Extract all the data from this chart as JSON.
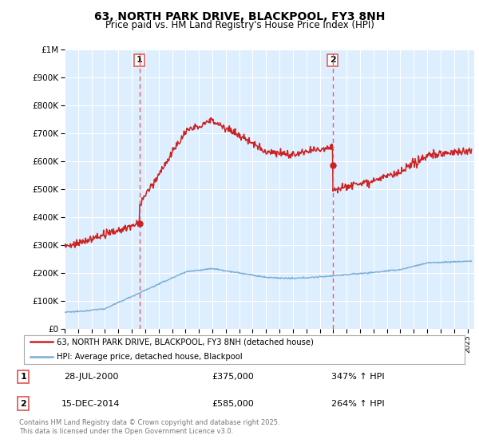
{
  "title": "63, NORTH PARK DRIVE, BLACKPOOL, FY3 8NH",
  "subtitle": "Price paid vs. HM Land Registry's House Price Index (HPI)",
  "legend_line1": "63, NORTH PARK DRIVE, BLACKPOOL, FY3 8NH (detached house)",
  "legend_line2": "HPI: Average price, detached house, Blackpool",
  "sale1_date": "28-JUL-2000",
  "sale1_price": "£375,000",
  "sale1_hpi": "347% ↑ HPI",
  "sale1_year": 2000.57,
  "sale1_value": 375000,
  "sale2_date": "15-DEC-2014",
  "sale2_price": "£585,000",
  "sale2_hpi": "264% ↑ HPI",
  "sale2_year": 2014.96,
  "sale2_value": 585000,
  "hpi_color": "#7aaed4",
  "price_color": "#cc2222",
  "vline_color": "#e06060",
  "background_color": "#ddeeff",
  "footer": "Contains HM Land Registry data © Crown copyright and database right 2025.\nThis data is licensed under the Open Government Licence v3.0.",
  "ylim": [
    0,
    1000000
  ],
  "xlim_start": 1995,
  "xlim_end": 2025.5
}
